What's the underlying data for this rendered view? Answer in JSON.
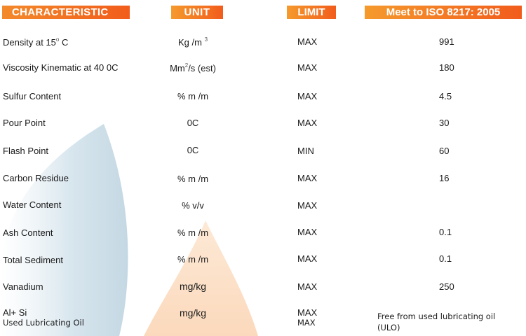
{
  "headers": {
    "characteristic": "CHARACTERISTIC",
    "unit": "UNIT",
    "limit": "LIMIT",
    "standard": "Meet to ISO 8217: 2005"
  },
  "rows": [
    {
      "name": "Density at 15",
      "name_sup": "o",
      "name_suffix": " C",
      "unit": "Kg /m",
      "unit_sup": "3",
      "limit": "MAX",
      "value": "991"
    },
    {
      "name": "Viscosity Kinematic at 40 0C",
      "unit": "Mm",
      "unit_sup": "2",
      "unit_suffix": "/s (est)",
      "limit": "MAX",
      "value": "180"
    },
    {
      "name": "Sulfur Content",
      "unit": "% m /m",
      "limit": "MAX",
      "value": "4.5"
    },
    {
      "name": "Pour Point",
      "unit": "0C",
      "limit": "MAX",
      "value": "30"
    },
    {
      "name": "Flash Point",
      "unit": "0C",
      "limit": "MIN",
      "value": "60"
    },
    {
      "name": "Carbon Residue",
      "unit": "% m /m",
      "limit": "MAX",
      "value": "16"
    },
    {
      "name": "Water Content",
      "unit": "% v/v",
      "limit": "MAX",
      "value": ""
    },
    {
      "name": "Ash Content",
      "unit": "% m /m",
      "limit": "MAX",
      "value": "0.1"
    },
    {
      "name": "Total Sediment",
      "unit": "% m /m",
      "limit": "MAX",
      "value": "0.1"
    },
    {
      "name": "Vanadium",
      "unit": "mg/kg",
      "limit": "MAX",
      "value": "250"
    },
    {
      "name": "Al+ Si",
      "name_sub": "Used Lubricating Oil",
      "unit": "mg/kg",
      "limit": "MAX",
      "limit_sub": "MAX",
      "value_line1": "Free from used lubricating oil",
      "value_line2": "(ULO)"
    }
  ],
  "colors": {
    "header_orange": "#f25c1c",
    "header_orange_light": "#f59a2d",
    "blue_shape": "#c9dbe6",
    "peach_shape": "#fbe3cf"
  }
}
